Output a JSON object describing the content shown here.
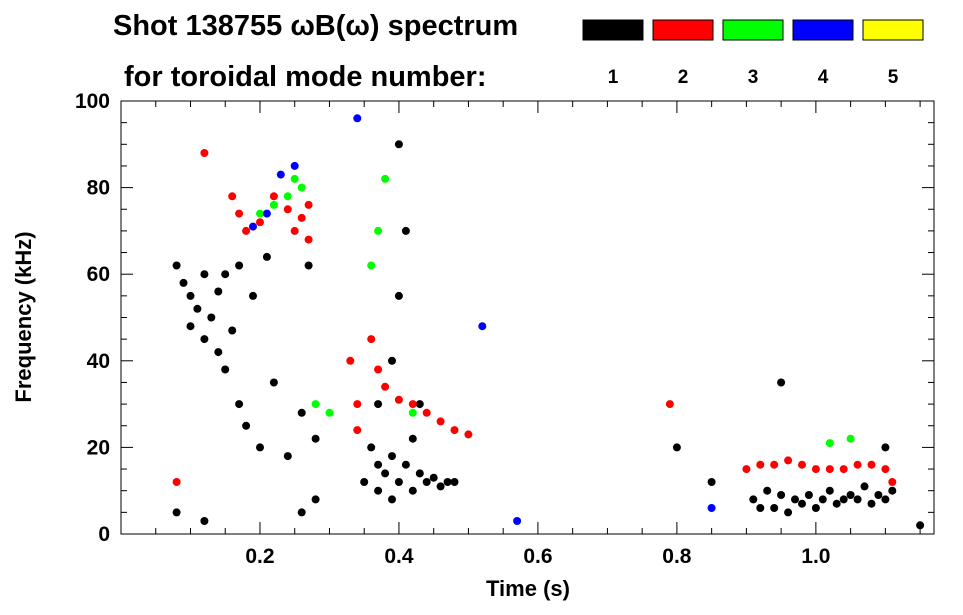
{
  "chart_data": {
    "type": "heatmap",
    "title": "Shot 138755 ωB(ω) spectrum",
    "subtitle": "for toroidal mode number:",
    "xlabel": "Time (s)",
    "ylabel": "Frequency (kHz)",
    "xlim": [
      0.0,
      1.17
    ],
    "ylim": [
      0,
      100
    ],
    "x_ticks": [
      0.2,
      0.4,
      0.6,
      0.8,
      1.0
    ],
    "x_tick_labels": [
      "0.2",
      "0.4",
      "0.6",
      "0.8",
      "1.0"
    ],
    "y_ticks": [
      0,
      20,
      40,
      60,
      80,
      100
    ],
    "y_tick_labels": [
      "0",
      "20",
      "40",
      "60",
      "80",
      "100"
    ],
    "legend": {
      "placement": "top-right",
      "entries": [
        {
          "label": "1",
          "color": "#000000"
        },
        {
          "label": "2",
          "color": "#ff0000"
        },
        {
          "label": "3",
          "color": "#00ff00"
        },
        {
          "label": "4",
          "color": "#0000ff"
        },
        {
          "label": "5",
          "color": "#ffff00"
        }
      ]
    },
    "series": [
      {
        "name": "1",
        "color": "#000000",
        "points": [
          [
            0.08,
            62
          ],
          [
            0.09,
            58
          ],
          [
            0.1,
            55
          ],
          [
            0.1,
            48
          ],
          [
            0.11,
            52
          ],
          [
            0.12,
            45
          ],
          [
            0.12,
            60
          ],
          [
            0.13,
            50
          ],
          [
            0.14,
            42
          ],
          [
            0.14,
            56
          ],
          [
            0.15,
            38
          ],
          [
            0.15,
            60
          ],
          [
            0.16,
            47
          ],
          [
            0.17,
            30
          ],
          [
            0.17,
            62
          ],
          [
            0.18,
            25
          ],
          [
            0.19,
            55
          ],
          [
            0.2,
            20
          ],
          [
            0.21,
            64
          ],
          [
            0.22,
            35
          ],
          [
            0.24,
            18
          ],
          [
            0.26,
            28
          ],
          [
            0.27,
            62
          ],
          [
            0.28,
            22
          ],
          [
            0.28,
            8
          ],
          [
            0.26,
            5
          ],
          [
            0.12,
            3
          ],
          [
            0.08,
            5
          ],
          [
            0.35,
            12
          ],
          [
            0.36,
            20
          ],
          [
            0.37,
            16
          ],
          [
            0.37,
            10
          ],
          [
            0.38,
            14
          ],
          [
            0.39,
            18
          ],
          [
            0.39,
            8
          ],
          [
            0.4,
            12
          ],
          [
            0.41,
            16
          ],
          [
            0.42,
            10
          ],
          [
            0.43,
            14
          ],
          [
            0.44,
            12
          ],
          [
            0.45,
            13
          ],
          [
            0.46,
            11
          ],
          [
            0.47,
            12
          ],
          [
            0.48,
            12
          ],
          [
            0.39,
            40
          ],
          [
            0.4,
            55
          ],
          [
            0.41,
            70
          ],
          [
            0.4,
            90
          ],
          [
            0.37,
            30
          ],
          [
            0.42,
            22
          ],
          [
            0.43,
            30
          ],
          [
            0.8,
            20
          ],
          [
            0.85,
            12
          ],
          [
            0.91,
            8
          ],
          [
            0.92,
            6
          ],
          [
            0.93,
            10
          ],
          [
            0.94,
            6
          ],
          [
            0.95,
            9
          ],
          [
            0.96,
            5
          ],
          [
            0.97,
            8
          ],
          [
            0.98,
            7
          ],
          [
            0.99,
            9
          ],
          [
            1.0,
            6
          ],
          [
            1.01,
            8
          ],
          [
            1.02,
            10
          ],
          [
            1.03,
            7
          ],
          [
            1.04,
            8
          ],
          [
            1.05,
            9
          ],
          [
            1.06,
            8
          ],
          [
            1.07,
            11
          ],
          [
            1.08,
            7
          ],
          [
            1.09,
            9
          ],
          [
            1.1,
            8
          ],
          [
            1.11,
            10
          ],
          [
            1.1,
            20
          ],
          [
            0.95,
            35
          ],
          [
            1.15,
            2
          ]
        ]
      },
      {
        "name": "2",
        "color": "#ff0000",
        "points": [
          [
            0.08,
            12
          ],
          [
            0.12,
            88
          ],
          [
            0.16,
            78
          ],
          [
            0.17,
            74
          ],
          [
            0.18,
            70
          ],
          [
            0.2,
            72
          ],
          [
            0.22,
            78
          ],
          [
            0.24,
            75
          ],
          [
            0.25,
            70
          ],
          [
            0.26,
            73
          ],
          [
            0.27,
            76
          ],
          [
            0.27,
            68
          ],
          [
            0.33,
            40
          ],
          [
            0.34,
            30
          ],
          [
            0.34,
            24
          ],
          [
            0.36,
            45
          ],
          [
            0.37,
            38
          ],
          [
            0.38,
            34
          ],
          [
            0.4,
            31
          ],
          [
            0.42,
            30
          ],
          [
            0.44,
            28
          ],
          [
            0.46,
            26
          ],
          [
            0.48,
            24
          ],
          [
            0.5,
            23
          ],
          [
            0.79,
            30
          ],
          [
            0.9,
            15
          ],
          [
            0.92,
            16
          ],
          [
            0.94,
            16
          ],
          [
            0.96,
            17
          ],
          [
            0.98,
            16
          ],
          [
            1.0,
            15
          ],
          [
            1.02,
            15
          ],
          [
            1.04,
            15
          ],
          [
            1.06,
            16
          ],
          [
            1.08,
            16
          ],
          [
            1.1,
            15
          ],
          [
            1.11,
            12
          ]
        ]
      },
      {
        "name": "3",
        "color": "#00ff00",
        "points": [
          [
            0.2,
            74
          ],
          [
            0.22,
            76
          ],
          [
            0.24,
            78
          ],
          [
            0.25,
            82
          ],
          [
            0.26,
            80
          ],
          [
            0.36,
            62
          ],
          [
            0.37,
            70
          ],
          [
            0.38,
            82
          ],
          [
            0.42,
            28
          ],
          [
            0.28,
            30
          ],
          [
            0.3,
            28
          ],
          [
            1.02,
            21
          ],
          [
            1.05,
            22
          ]
        ]
      },
      {
        "name": "4",
        "color": "#0000ff",
        "points": [
          [
            0.19,
            71
          ],
          [
            0.21,
            74
          ],
          [
            0.23,
            83
          ],
          [
            0.25,
            85
          ],
          [
            0.34,
            96
          ],
          [
            0.52,
            48
          ],
          [
            0.57,
            3
          ],
          [
            0.85,
            6
          ]
        ]
      },
      {
        "name": "5",
        "color": "#ffff00",
        "points": []
      }
    ]
  }
}
